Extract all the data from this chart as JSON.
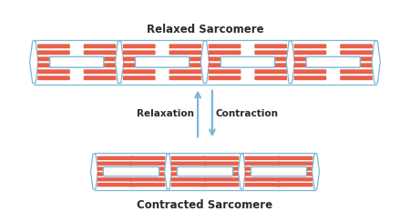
{
  "title_relaxed": "Relaxed Sarcomere",
  "title_contracted": "Contracted Sarcomere",
  "arrow_label_left": "Relaxation",
  "arrow_label_right": "Contraction",
  "bg_color": "#ffffff",
  "actin_color": "#e8604a",
  "myosin_color": "#7ab8d8",
  "text_color": "#2a2a2a",
  "arrow_color": "#7ab8d8",
  "title_fontsize": 8.5,
  "label_fontsize": 7.5
}
